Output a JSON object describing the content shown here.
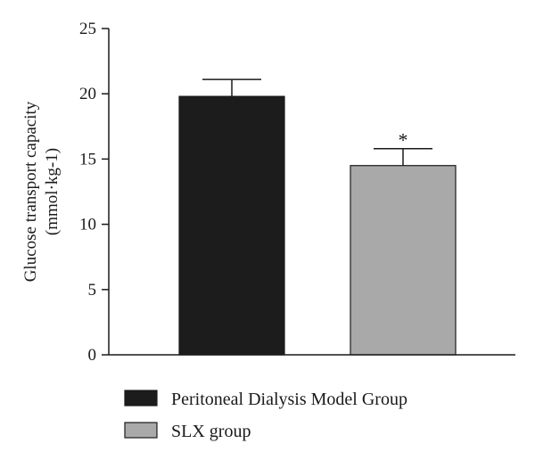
{
  "chart_data": {
    "type": "bar",
    "categories": [
      "Peritoneal Dialysis Model Group",
      "SLX group"
    ],
    "values": [
      19.8,
      14.5
    ],
    "errors": [
      1.3,
      1.3
    ],
    "ylabel_line1": "Glucose transport capacity",
    "ylabel_line2": "(mmol·kg-1)",
    "ylim": [
      0,
      25
    ],
    "yticks": [
      "0",
      "5",
      "10",
      "15",
      "20",
      "25"
    ],
    "colors": [
      "#1c1c1c",
      "#a9a9a9"
    ],
    "annotations": [
      "",
      "*"
    ],
    "legend": {
      "placement": "bottom",
      "entries": [
        "Peritoneal Dialysis Model Group",
        "SLX group"
      ]
    }
  }
}
